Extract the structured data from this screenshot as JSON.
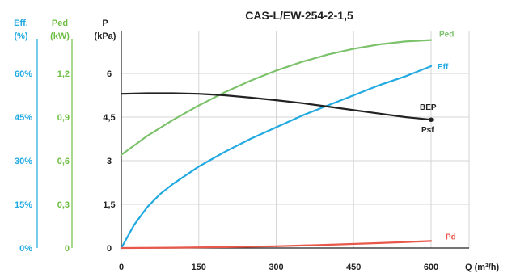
{
  "chart_data": {
    "type": "line",
    "title": "CAS-L/EW-254-2-1,5",
    "xlabel": "Q (m³/h)",
    "xlim": [
      0,
      600
    ],
    "x_ticks": [
      "0",
      "150",
      "300",
      "450",
      "600"
    ],
    "grid": true,
    "axes": {
      "eff": {
        "label_line1": "Eff.",
        "label_line2": "(%)",
        "color": "#21a9e1",
        "ylim": [
          0,
          80
        ],
        "ticks": [
          "0%",
          "15%",
          "30%",
          "45%",
          "60%"
        ]
      },
      "ped": {
        "label_line1": "Ped",
        "label_line2": "(kW)",
        "color": "#6fbe44",
        "ylim": [
          0,
          1.6
        ],
        "ticks": [
          "0",
          "0,3",
          "0,6",
          "0,9",
          "1,2"
        ]
      },
      "p": {
        "label_line1": "P",
        "label_line2": "(kPa)",
        "color": "#222222",
        "ylim": [
          0,
          8
        ],
        "ticks": [
          "0",
          "1,5",
          "3",
          "4,5",
          "6"
        ]
      }
    },
    "series": [
      {
        "name": "Ped",
        "axis": "ped",
        "color": "#7cc26b",
        "x": [
          0,
          50,
          100,
          150,
          200,
          250,
          300,
          350,
          400,
          450,
          500,
          550,
          600
        ],
        "y": [
          0.64,
          0.77,
          0.88,
          0.98,
          1.07,
          1.15,
          1.22,
          1.28,
          1.33,
          1.37,
          1.4,
          1.42,
          1.43
        ]
      },
      {
        "name": "Eff",
        "axis": "eff",
        "color": "#21a9e1",
        "x": [
          0,
          25,
          50,
          75,
          100,
          150,
          200,
          250,
          300,
          350,
          400,
          450,
          500,
          550,
          600
        ],
        "y": [
          0,
          8,
          14,
          18.5,
          22,
          28,
          33,
          37.5,
          41.5,
          45.5,
          49,
          52.5,
          56,
          59,
          62.5
        ]
      },
      {
        "name": "Psf",
        "axis": "p",
        "color": "#222222",
        "x": [
          0,
          50,
          100,
          150,
          200,
          250,
          300,
          350,
          400,
          450,
          500,
          550,
          600
        ],
        "y": [
          5.3,
          5.32,
          5.32,
          5.3,
          5.25,
          5.17,
          5.08,
          4.98,
          4.86,
          4.74,
          4.62,
          4.5,
          4.41
        ]
      },
      {
        "name": "Pd",
        "axis": "p",
        "color": "#e8584a",
        "x": [
          0,
          100,
          200,
          300,
          400,
          500,
          600
        ],
        "y": [
          0,
          0.01,
          0.03,
          0.06,
          0.11,
          0.17,
          0.24
        ]
      }
    ],
    "annotations": [
      {
        "text": "BEP",
        "x": 600,
        "y": 4.41,
        "axis": "p"
      }
    ]
  }
}
